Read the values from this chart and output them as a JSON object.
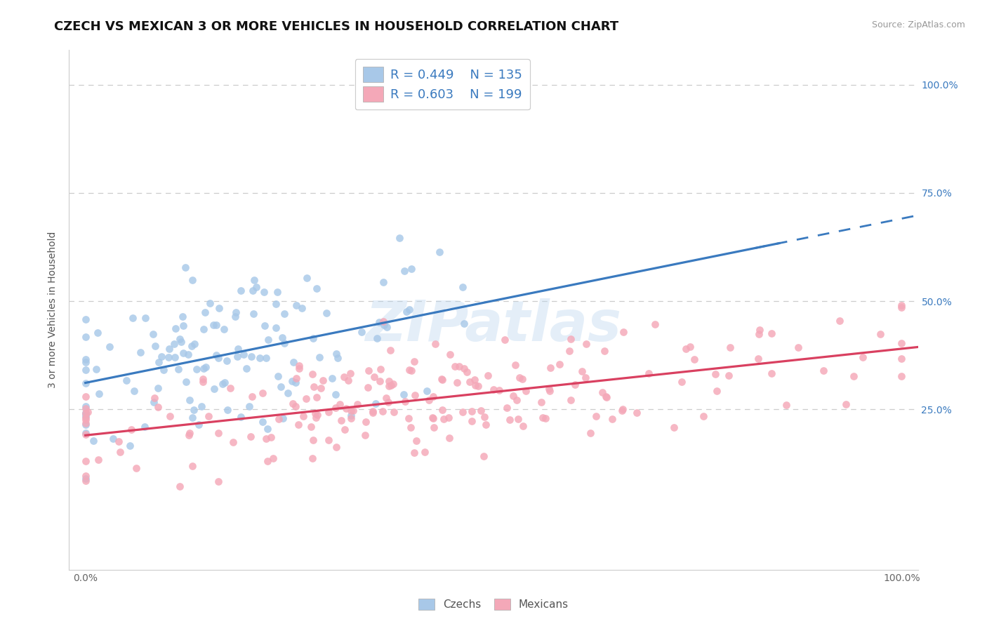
{
  "title": "CZECH VS MEXICAN 3 OR MORE VEHICLES IN HOUSEHOLD CORRELATION CHART",
  "source": "Source: ZipAtlas.com",
  "ylabel": "3 or more Vehicles in Household",
  "czech_color": "#a8c8e8",
  "mexican_color": "#f4a8b8",
  "czech_line_color": "#3a7abf",
  "mexican_line_color": "#d94060",
  "czech_R": 0.449,
  "czech_N": 135,
  "mexican_R": 0.603,
  "mexican_N": 199,
  "watermark": "ZIPatlas",
  "background_color": "#ffffff",
  "grid_color": "#cccccc",
  "title_fontsize": 13,
  "label_fontsize": 10,
  "tick_fontsize": 10,
  "ytick_color": "#3a7abf",
  "ytick_labels": [
    "25.0%",
    "50.0%",
    "75.0%",
    "100.0%"
  ],
  "ytick_values": [
    0.25,
    0.5,
    0.75,
    1.0
  ],
  "xlim": [
    -0.02,
    1.02
  ],
  "ylim": [
    -0.12,
    1.08
  ]
}
